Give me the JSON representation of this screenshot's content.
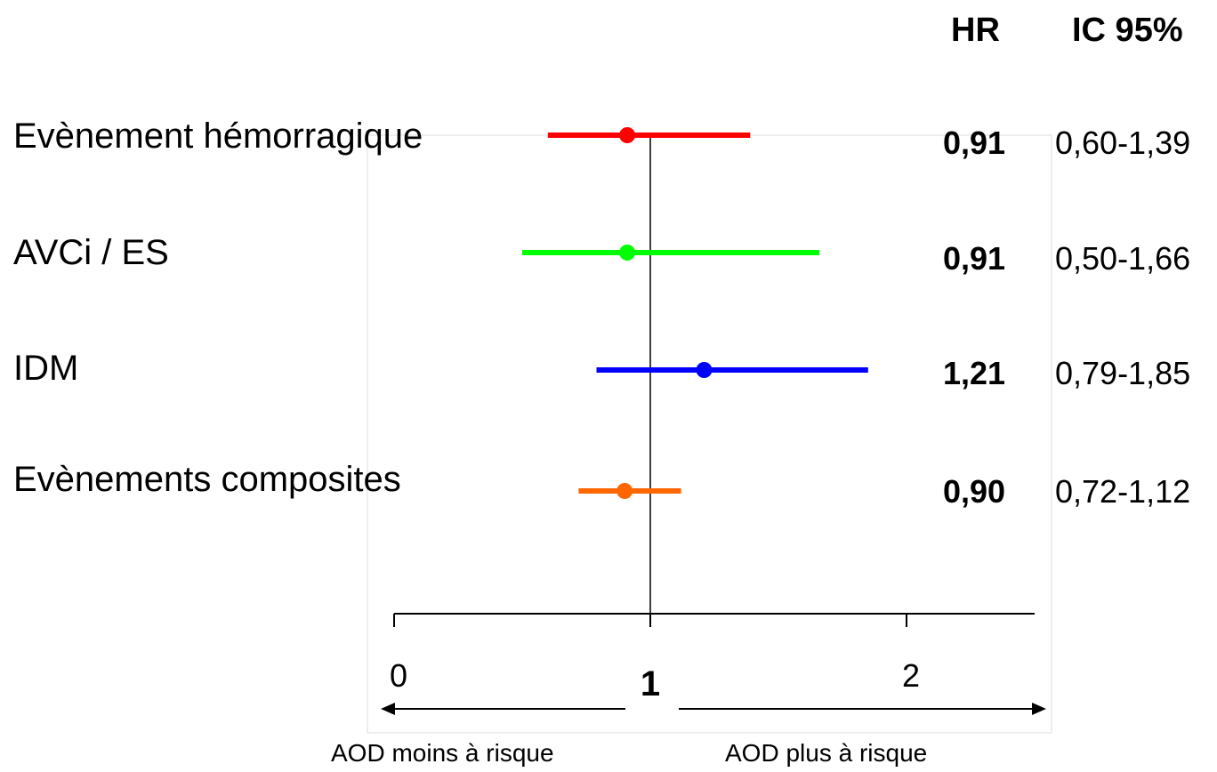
{
  "headers": {
    "hr": "HR",
    "ic": "IC 95%"
  },
  "chart_data": {
    "type": "forest",
    "xlim": [
      0,
      2.5
    ],
    "reference": 1,
    "x_ticks": [
      {
        "value": 0,
        "label": "0"
      },
      {
        "value": 1,
        "label": "1"
      },
      {
        "value": 2,
        "label": "2"
      }
    ],
    "directions": {
      "left": "AOD moins à risque",
      "right": "AOD plus à risque"
    },
    "rows": [
      {
        "label": "Evènement hémorragique",
        "hr": 0.91,
        "low": 0.6,
        "high": 1.39,
        "hr_text": "0,91",
        "ic_text": "0,60-1,39",
        "color": "#ff0000"
      },
      {
        "label": "AVCi / ES",
        "hr": 0.91,
        "low": 0.5,
        "high": 1.66,
        "hr_text": "0,91",
        "ic_text": "0,50-1,66",
        "color": "#00ff00"
      },
      {
        "label": "IDM",
        "hr": 1.21,
        "low": 0.79,
        "high": 1.85,
        "hr_text": "1,21",
        "ic_text": "0,79-1,85",
        "color": "#0000ff"
      },
      {
        "label": "Evènements composites",
        "hr": 0.9,
        "low": 0.72,
        "high": 1.12,
        "hr_text": "0,90",
        "ic_text": "0,72-1,12",
        "color": "#ff6600"
      }
    ]
  }
}
